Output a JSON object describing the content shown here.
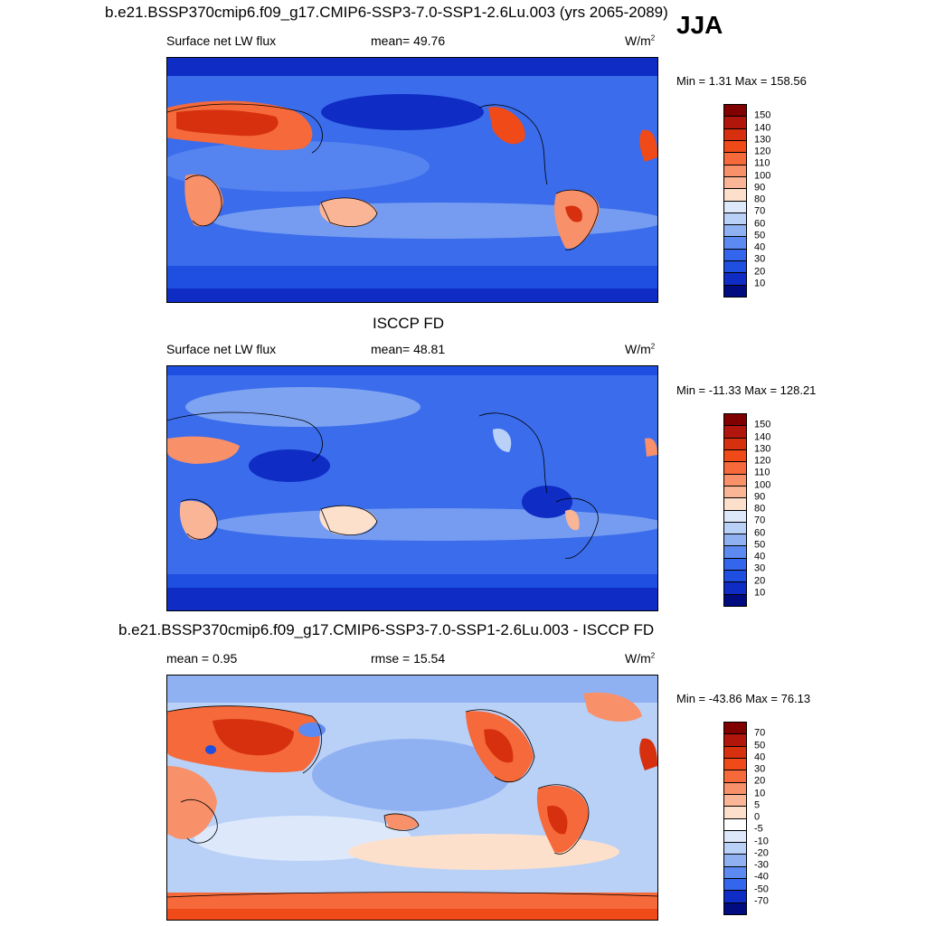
{
  "season": "JJA",
  "panels": [
    {
      "title": "b.e21.BSSP370cmip6.f09_g17.CMIP6-SSP3-7.0-SSP1-2.6Lu.003 (yrs 2065-2089)",
      "left_label": "Surface net LW flux",
      "center_label": "mean=  49.76",
      "units": "W/m",
      "units_sup": "2",
      "minmax": "Min =   1.31 Max = 158.56",
      "colorbar_labels": [
        "150",
        "140",
        "130",
        "120",
        "110",
        "100",
        "90",
        "80",
        "70",
        "60",
        "50",
        "40",
        "30",
        "20",
        "10"
      ],
      "colorbar_colors": [
        "#800000",
        "#b0160c",
        "#d6300f",
        "#ef4a18",
        "#f5693a",
        "#f8906a",
        "#fab596",
        "#fde0cc",
        "#dde9fb",
        "#b9d0f7",
        "#8fb1f2",
        "#5d8af0",
        "#3366ec",
        "#1f4fe0",
        "#0f2cc4",
        "#000c80"
      ]
    },
    {
      "title": "ISCCP FD",
      "left_label": "Surface net LW flux",
      "center_label": "mean=  48.81",
      "units": "W/m",
      "units_sup": "2",
      "minmax": "Min = -11.33 Max = 128.21",
      "colorbar_labels": [
        "150",
        "140",
        "130",
        "120",
        "110",
        "100",
        "90",
        "80",
        "70",
        "60",
        "50",
        "40",
        "30",
        "20",
        "10"
      ],
      "colorbar_colors": [
        "#800000",
        "#b0160c",
        "#d6300f",
        "#ef4a18",
        "#f5693a",
        "#f8906a",
        "#fab596",
        "#fde0cc",
        "#dde9fb",
        "#b9d0f7",
        "#8fb1f2",
        "#5d8af0",
        "#3366ec",
        "#1f4fe0",
        "#0f2cc4",
        "#000c80"
      ]
    },
    {
      "title": "b.e21.BSSP370cmip6.f09_g17.CMIP6-SSP3-7.0-SSP1-2.6Lu.003 - ISCCP FD",
      "left_label": "mean =   0.95",
      "center_label": "rmse =  15.54",
      "units": "W/m",
      "units_sup": "2",
      "minmax": "Min = -43.86 Max =  76.13",
      "colorbar_labels": [
        "70",
        "50",
        "40",
        "30",
        "20",
        "10",
        "5",
        "0",
        "-5",
        "-10",
        "-20",
        "-30",
        "-40",
        "-50",
        "-70"
      ],
      "colorbar_colors": [
        "#800000",
        "#b0160c",
        "#d6300f",
        "#ef4a18",
        "#f5693a",
        "#f8906a",
        "#fab596",
        "#fde0cc",
        "#ffffff",
        "#dde9fb",
        "#b9d0f7",
        "#8fb1f2",
        "#5d8af0",
        "#3366ec",
        "#0f2cc4",
        "#000c80"
      ]
    }
  ]
}
